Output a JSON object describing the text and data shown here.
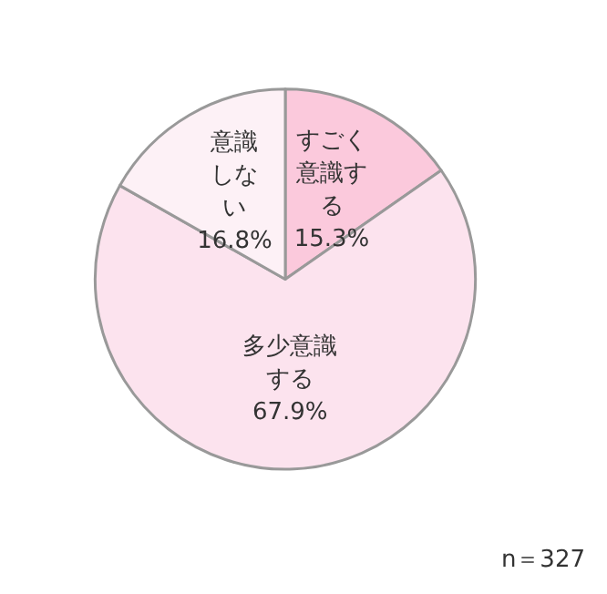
{
  "chart_data": {
    "type": "pie",
    "categories": [
      "すごく意識する",
      "多少意識する",
      "意識しない"
    ],
    "values": [
      15.3,
      67.9,
      16.8
    ],
    "colors": [
      "#fbc9dc",
      "#fce3ee",
      "#fdf1f6"
    ],
    "value_labels": [
      "15.3%",
      "67.9%",
      "16.8%"
    ],
    "legend": false,
    "annotations": [
      "n＝327"
    ]
  }
}
